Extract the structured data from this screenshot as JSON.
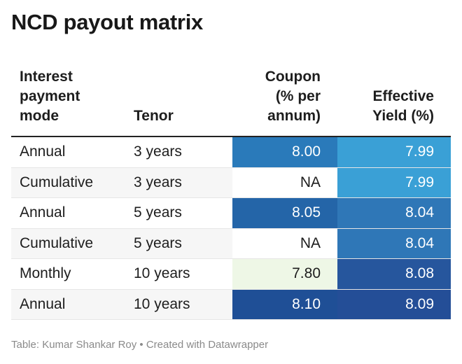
{
  "title": "NCD payout matrix",
  "columns": {
    "mode": [
      "Interest",
      "payment",
      "mode"
    ],
    "tenor": [
      "Tenor"
    ],
    "coupon": [
      "Coupon",
      "(% per",
      "annum)"
    ],
    "yield": [
      "Effective",
      "Yield (%)"
    ]
  },
  "rows": [
    {
      "mode": "Annual",
      "tenor": "3 years",
      "coupon": "8.00",
      "yield": "7.99"
    },
    {
      "mode": "Cumulative",
      "tenor": "3 years",
      "coupon": "NA",
      "yield": "7.99"
    },
    {
      "mode": "Annual",
      "tenor": "5 years",
      "coupon": "8.05",
      "yield": "8.04"
    },
    {
      "mode": "Cumulative",
      "tenor": "5 years",
      "coupon": "NA",
      "yield": "8.04"
    },
    {
      "mode": "Monthly",
      "tenor": "10 years",
      "coupon": "7.80",
      "yield": "8.08"
    },
    {
      "mode": "Annual",
      "tenor": "10 years",
      "coupon": "8.10",
      "yield": "8.09"
    }
  ],
  "footer": "Table: Kumar Shankar Roy • Created with Datawrapper",
  "colors": {
    "coupon_low": "#eef7e6",
    "coupon_mid": "#2f90cc",
    "coupon_high": "#1f4f96",
    "yield_low": "#3aa0d6",
    "yield_high": "#244e97",
    "na_bg": "#ffffff",
    "light_text": "#1d1d1d",
    "dark_text": "#ffffff"
  },
  "chart_data": {
    "type": "table",
    "title": "NCD payout matrix",
    "columns": [
      "Interest payment mode",
      "Tenor",
      "Coupon (% per annum)",
      "Effective Yield (%)"
    ],
    "rows": [
      [
        "Annual",
        "3 years",
        8.0,
        7.99
      ],
      [
        "Cumulative",
        "3 years",
        "NA",
        7.99
      ],
      [
        "Annual",
        "5 years",
        8.05,
        8.04
      ],
      [
        "Cumulative",
        "5 years",
        "NA",
        8.04
      ],
      [
        "Monthly",
        "10 years",
        7.8,
        8.08
      ],
      [
        "Annual",
        "10 years",
        8.1,
        8.09
      ]
    ],
    "heatmap_columns": [
      "Coupon (% per annum)",
      "Effective Yield (%)"
    ]
  }
}
